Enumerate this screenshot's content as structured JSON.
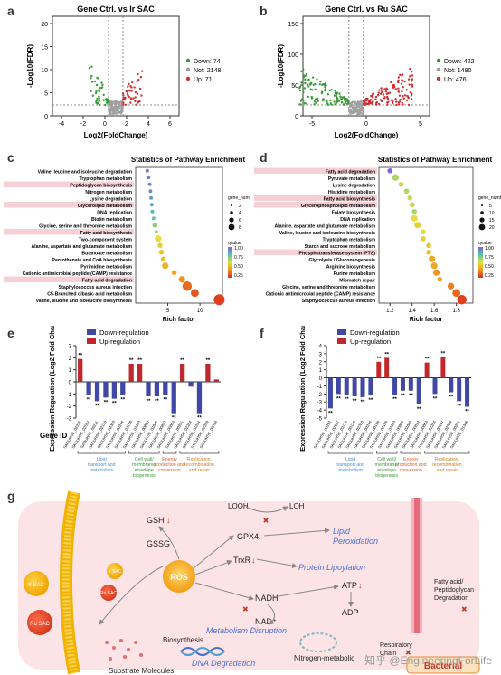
{
  "letters": {
    "a": "a",
    "b": "b",
    "c": "c",
    "d": "d",
    "e": "e",
    "f": "f",
    "g": "g"
  },
  "volcano": [
    {
      "id": "a",
      "title": "Gene Ctrl. vs Ir SAC",
      "ylabel": "-Log10(FDR)",
      "xlabel": "Log2(FoldChange)",
      "xticks": [
        "-4",
        "-2",
        "0",
        "2",
        "4",
        "6"
      ],
      "yticks": [
        "0",
        "5",
        "10",
        "15",
        "20"
      ],
      "legend": [
        {
          "label": "Down: 74",
          "color": "#3a9a3a"
        },
        {
          "label": "Not: 2148",
          "color": "#9a9a9a"
        },
        {
          "label": "Up: 71",
          "color": "#d03030"
        }
      ]
    },
    {
      "id": "b",
      "title": "Gene Ctrl. vs Ru SAC",
      "ylabel": "-Log10(FDR)",
      "xlabel": "Log2(FoldChange)",
      "xticks": [
        "-5",
        "0",
        "5"
      ],
      "yticks": [
        "0",
        "50",
        "100",
        "150"
      ],
      "legend": [
        {
          "label": "Down: 422",
          "color": "#3a9a3a"
        },
        {
          "label": "Not: 1490",
          "color": "#9a9a9a"
        },
        {
          "label": "Up: 476",
          "color": "#d03030"
        }
      ]
    }
  ],
  "chart_data": [
    {
      "type": "scatter",
      "panel": "c",
      "title": "Statistics of Pathway Enrichment",
      "xlabel": "Rich factor",
      "xticks": [
        "5",
        "10"
      ],
      "categories": [
        "Valine, leucine and isoleucine degradation",
        "Tryptophan metabolism",
        "Peptidoglycan biosynthesis",
        "Nitrogen metabolism",
        "Lysine degradation",
        "Glycerolipid metabolism",
        "DNA replication",
        "Biotin metabolism",
        "Glycine, serine and threonine metabolism",
        "Fatty acid biosynthesis",
        "Two-component system",
        "Alanine, aspartate and glutamate metabolism",
        "Butanoate metabolism",
        "Pantothenate and CoA biosynthesis",
        "Pyrimidine metabolism",
        "Cationic antimicrobial peptide (CAMP) resistance",
        "Fatty acid degradation",
        "Staphylococcus aureus infection",
        "C5-Branched dibasic acid metabolism",
        "Valine, leucine and isoleucine biosynthesis"
      ],
      "highlighted": [
        2,
        5,
        9,
        16
      ],
      "x": [
        1.8,
        2.0,
        2.2,
        2.3,
        2.4,
        2.5,
        2.6,
        2.8,
        3.0,
        3.2,
        3.5,
        3.8,
        4.0,
        4.3,
        4.6,
        6.0,
        7.2,
        8.0,
        9.2,
        13.0
      ],
      "size": [
        1,
        1,
        1,
        1,
        1,
        1,
        1,
        1,
        2,
        1,
        3,
        2,
        2,
        2,
        3,
        2,
        3,
        5,
        4,
        6
      ],
      "qvalue": [
        0.95,
        0.92,
        0.9,
        0.88,
        0.85,
        0.82,
        0.78,
        0.72,
        0.65,
        0.6,
        0.5,
        0.45,
        0.42,
        0.4,
        0.35,
        0.3,
        0.25,
        0.15,
        0.1,
        0.05
      ],
      "legend_size_title": "gene_number",
      "legend_size_labels": [
        "2",
        "4",
        "6",
        "8"
      ],
      "legend_color_title": "qvalue",
      "legend_color_labels": [
        "1.00",
        "0.75",
        "0.50",
        "0.25"
      ]
    },
    {
      "type": "scatter",
      "panel": "d",
      "title": "Statistics of Pathway Enrichment",
      "xlabel": "Rich factor",
      "xticks": [
        "1.2",
        "1.4",
        "1.6",
        "1.8"
      ],
      "categories": [
        "Fatty acid degradation",
        "Pyruvate metabolism",
        "Lysine degradation",
        "Histidine metabolism",
        "Fatty acid biosynthesis",
        "Glycerophospholipid metabolism",
        "Folate biosynthesis",
        "DNA replication",
        "Alanine, aspartate and glutamate metabolism",
        "Valine, leucine and isoleucine biosynthesis",
        "Tryptophan metabolism",
        "Starch and sucrose metabolism",
        "Phosphotransferase system (PTS)",
        "Glycolysis / Gluconeogenesis",
        "Arginine biosynthesis",
        "Purine metabolism",
        "Mismatch repair",
        "Glycine, serine and threonine metabolism",
        "Cationic antimicrobial peptide (CAMP) resistance",
        "Staphylococcus aureus infection"
      ],
      "highlighted": [
        0,
        4,
        5,
        12
      ],
      "x": [
        1.2,
        1.25,
        1.3,
        1.35,
        1.38,
        1.4,
        1.42,
        1.42,
        1.45,
        1.5,
        1.5,
        1.55,
        1.55,
        1.58,
        1.6,
        1.62,
        1.65,
        1.75,
        1.8,
        1.85
      ],
      "size": [
        2,
        3,
        2,
        2,
        2,
        2,
        2,
        3,
        3,
        2,
        2,
        2,
        2,
        3,
        3,
        3,
        2,
        3,
        4,
        5
      ],
      "qvalue": [
        0.98,
        0.6,
        0.55,
        0.6,
        0.55,
        0.55,
        0.6,
        0.5,
        0.45,
        0.48,
        0.45,
        0.4,
        0.4,
        0.3,
        0.3,
        0.25,
        0.3,
        0.2,
        0.15,
        0.05
      ],
      "legend_size_title": "gene_numb",
      "legend_size_labels": [
        "5",
        "10",
        "15",
        "20"
      ],
      "legend_color_title": "qvalue",
      "legend_color_labels": [
        "1.00",
        "0.75",
        "0.50",
        "0.25"
      ]
    },
    {
      "type": "bar",
      "panel": "e",
      "ylabel": "Expression Regulation (Log2 Fold Change)",
      "xlabel": "Gene ID",
      "ylim": [
        -3,
        3
      ],
      "yticks": [
        "-3",
        "-2",
        "-1",
        "0",
        "1",
        "2",
        "3"
      ],
      "legend": [
        "Down-regulation",
        "Up-regulation"
      ],
      "categories": [
        "SAOUHSC_02235",
        "SAOUHSC_02597",
        "SAOUHSC_00211",
        "SAOUHSC_02130",
        "SAOUHSC_02300",
        "SAOUHSC_00244",
        "SAOUHSC_02159",
        "SAOUHSC_03183",
        "SAOUHSC_00860",
        "SAOUHSC_02840",
        "SAOUHSC_00812",
        "SAOUHSC_00863",
        "SAOUHSC_00201",
        "SAOUHSC_02284",
        "SAOUHSC_02224",
        "SAOUHSC_02269",
        "SAOUHSC_00014"
      ],
      "values": [
        1.9,
        -1.1,
        -1.6,
        -1.3,
        -1.4,
        -1.1,
        1.5,
        1.5,
        -1.2,
        -1.2,
        -1.1,
        -2.6,
        1.5,
        -0.4,
        -2.6,
        1.5,
        0.2
      ],
      "labels": [
        "**",
        "**",
        "**",
        "**",
        "**",
        "**",
        "**",
        "**",
        "**",
        "**",
        "**",
        "**",
        "**",
        "",
        "**",
        "**",
        ""
      ],
      "groups": [
        {
          "label": "Lipid transport and metabolism",
          "color": "#4a90d9",
          "from": 0,
          "to": 5
        },
        {
          "label": "Cell wall/ membrane/ envelope biogenesis",
          "color": "#3a9a3a",
          "from": 6,
          "to": 9
        },
        {
          "label": "Energy production and conversion",
          "color": "#e06030",
          "from": 10,
          "to": 11
        },
        {
          "label": "Replication, recombination and repair",
          "color": "#d08020",
          "from": 12,
          "to": 16
        }
      ]
    },
    {
      "type": "bar",
      "panel": "f",
      "ylabel": "Expression Regulation (Log2 Fold Change)",
      "xlabel": "",
      "ylim": [
        -5,
        4
      ],
      "yticks": [
        "-5",
        "-4",
        "-3",
        "-2",
        "-1",
        "0",
        "1",
        "2",
        "3",
        "4"
      ],
      "legend": [
        "Down-regulation",
        "Up-regulation"
      ],
      "categories": [
        "SAOUHSC_00292",
        "SAOUHSC_02597",
        "SAOUHSC_03178",
        "SAOUHSC_00130",
        "SAOUHSC_02300",
        "SAOUHSC_00244",
        "SAOUHSC_00199",
        "SAOUHSC_02159",
        "SAOUHSC_03183",
        "SAOUHSC_00860",
        "SAOUHSC_02840",
        "SAOUHSC_00812",
        "SAOUHSC_00863",
        "SAOUHSC_02284",
        "SAOUHSC_00147",
        "SAOUHSC_02224",
        "SAOUHSC_00201",
        "SAOUHSC_01349"
      ],
      "values": [
        -3.8,
        -2.0,
        -2.1,
        -2.3,
        -2.4,
        -2.2,
        2.0,
        2.5,
        -2.1,
        -1.6,
        -1.6,
        -3.3,
        1.9,
        -2.0,
        2.6,
        -1.8,
        -2.9,
        -3.6
      ],
      "labels": [
        "**",
        "**",
        "**",
        "**",
        "**",
        "**",
        "**",
        "**",
        "**",
        "**",
        "**",
        "**",
        "**",
        "**",
        "**",
        "**",
        "**",
        "**"
      ],
      "groups": [
        {
          "label": "Lipid transport and metabolism",
          "color": "#4a90d9",
          "from": 0,
          "to": 5
        },
        {
          "label": "Cell wall/ membrane/ envelope biogenesis",
          "color": "#3a9a3a",
          "from": 6,
          "to": 8
        },
        {
          "label": "Energy production and conversion",
          "color": "#e06030",
          "from": 9,
          "to": 11
        },
        {
          "label": "Replication, recombination and repair",
          "color": "#d08020",
          "from": 12,
          "to": 17
        }
      ]
    }
  ],
  "scheme": {
    "labels": {
      "gsh": "GSH",
      "gssg": "GSSG",
      "looh": "LOOH",
      "loh": "LOH",
      "gpx4": "GPX4",
      "trxr": "TrxR",
      "nadh": "NADH",
      "nadplus": "NAD⁺",
      "atp": "ATP",
      "adp": "ADP",
      "ros": "ROS",
      "lipid_perox": "Lipid Peroxidation",
      "protein_lipo": "Protein Lipoylation",
      "metab_disrupt": "Metabolism Disruption",
      "dna_degr": "DNA Degradation",
      "biosynthesis": "Biosynthesis",
      "substrate": "Substrate Molecules",
      "nitrogen": "Nitrogen-metabolic",
      "fatty_acid": "Fatty acid/ Peptidoglycan Degradation",
      "resp_chain": "Respiratory Chain",
      "bacterial": "Bacterial",
      "ir_sac_1": "Ir SAC",
      "ir_sac_2": "Ir SAC",
      "ru_sac_1": "Ru SAC",
      "ru_sac_2": "Ru SAC"
    }
  },
  "watermark": "知乎 @EngineeringForLife"
}
